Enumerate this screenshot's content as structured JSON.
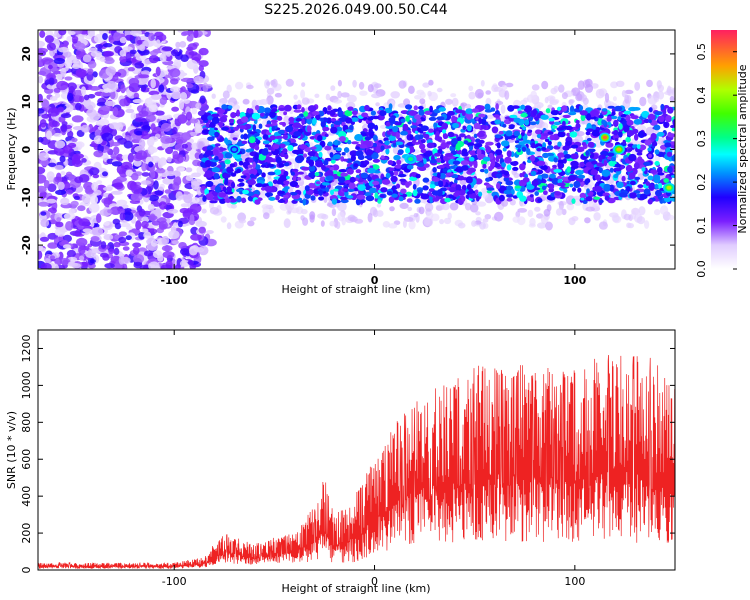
{
  "chart_data": [
    {
      "type": "heatmap",
      "title": "S225.2026.049.00.50.C44",
      "xlabel": "Height of straight line (km)",
      "ylabel": "Frequency (Hz)",
      "xlim": [
        -168,
        150
      ],
      "ylim": [
        -25,
        25
      ],
      "x_ticks": [
        -100,
        0,
        100
      ],
      "x_tick_labels": [
        "-100",
        "0",
        "100"
      ],
      "y_ticks": [
        -20,
        -10,
        0,
        10,
        20
      ],
      "y_tick_labels": [
        "-20",
        "-10",
        "0",
        "10",
        "20"
      ],
      "colorbar": {
        "label": "Normalized spectral amplitude",
        "range": [
          0.0,
          0.55
        ],
        "ticks": [
          0.0,
          0.1,
          0.2,
          0.3,
          0.4,
          0.5
        ],
        "tick_labels": [
          "0.0",
          "0.1",
          "0.2",
          "0.3",
          "0.4",
          "0.5"
        ]
      },
      "description_points": {
        "noise_region_x": [
          -168,
          -85
        ],
        "signal_band_freq": [
          -8,
          6
        ],
        "peaks": [
          {
            "x": 115,
            "y": 2.5,
            "value": 0.5
          },
          {
            "x": 122,
            "y": 0,
            "value": 0.45
          },
          {
            "x": 147,
            "y": -8,
            "value": 0.42
          },
          {
            "x": 18,
            "y": -2,
            "value": 0.3
          },
          {
            "x": -70,
            "y": 0,
            "value": 0.22
          }
        ]
      }
    },
    {
      "type": "line",
      "title": "",
      "xlabel": "Height of straight line (km)",
      "ylabel": "SNR (10 * v/v)",
      "xlim": [
        -168,
        150
      ],
      "ylim": [
        0,
        1300
      ],
      "x_ticks": [
        -100,
        0,
        100
      ],
      "x_tick_labels": [
        "-100",
        "0",
        "100"
      ],
      "y_ticks": [
        0,
        200,
        400,
        600,
        800,
        1000,
        1200
      ],
      "y_tick_labels": [
        "0",
        "200",
        "400",
        "600",
        "800",
        "1000",
        "1200"
      ],
      "series": [
        {
          "name": "SNR",
          "color": "#ee2222",
          "envelope": {
            "x": [
              -168,
              -100,
              -85,
              -80,
              -75,
              -60,
              -50,
              -40,
              -28,
              -25,
              -20,
              -10,
              0,
              10,
              20,
              40,
              60,
              80,
              100,
              120,
              140,
              150
            ],
            "min": [
              5,
              5,
              10,
              20,
              30,
              20,
              30,
              30,
              20,
              40,
              20,
              20,
              60,
              80,
              100,
              100,
              100,
              100,
              100,
              100,
              80,
              100
            ],
            "max": [
              40,
              40,
              70,
              150,
              200,
              140,
              180,
              200,
              380,
              530,
              300,
              420,
              600,
              800,
              950,
              1050,
              1150,
              1100,
              1100,
              1200,
              1150,
              1000
            ]
          }
        }
      ]
    }
  ]
}
